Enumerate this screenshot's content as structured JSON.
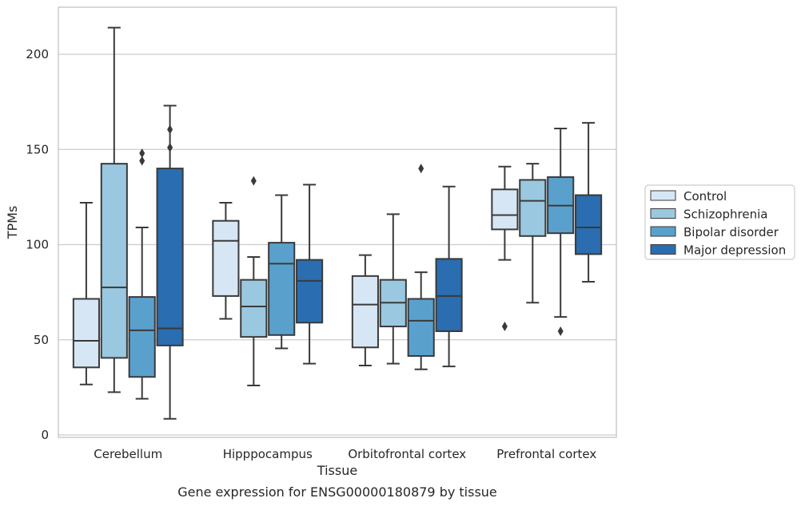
{
  "chart_data": {
    "type": "boxplot",
    "title": "",
    "caption": "Gene expression for ENSG00000180879 by tissue",
    "xlabel": "Tissue",
    "ylabel": "TPMs",
    "ylim": [
      0,
      225
    ],
    "yticks": [
      "0",
      "50",
      "100",
      "150",
      "200"
    ],
    "ytick_values": [
      0,
      50,
      100,
      150,
      200
    ],
    "grid": "horizontal",
    "legend_position": "right",
    "categories": [
      "Cerebellum",
      "Hipppocampus",
      "Orbitofrontal cortex",
      "Prefrontal cortex"
    ],
    "series": [
      {
        "name": "Control",
        "color": "#d6e6f4",
        "boxes": [
          {
            "whislo": 26.5,
            "q1": 35.5,
            "med": 49.5,
            "q3": 71.5,
            "whishi": 122,
            "fliers": []
          },
          {
            "whislo": 61,
            "q1": 73,
            "med": 102,
            "q3": 112.5,
            "whishi": 122,
            "fliers": []
          },
          {
            "whislo": 36.5,
            "q1": 46,
            "med": 68.5,
            "q3": 83.5,
            "whishi": 94.5,
            "fliers": []
          },
          {
            "whislo": 92,
            "q1": 108,
            "med": 115.5,
            "q3": 129,
            "whishi": 141,
            "fliers": [
              57
            ]
          }
        ]
      },
      {
        "name": "Schizophrenia",
        "color": "#9ac8e0",
        "boxes": [
          {
            "whislo": 22.5,
            "q1": 40.5,
            "med": 77.5,
            "q3": 142.5,
            "whishi": 214,
            "fliers": []
          },
          {
            "whislo": 26,
            "q1": 51.5,
            "med": 67.5,
            "q3": 81.5,
            "whishi": 93.5,
            "fliers": [
              133.5
            ]
          },
          {
            "whislo": 37.5,
            "q1": 57,
            "med": 69.5,
            "q3": 81.5,
            "whishi": 116,
            "fliers": []
          },
          {
            "whislo": 69.5,
            "q1": 104.5,
            "med": 123,
            "q3": 134,
            "whishi": 142.5,
            "fliers": []
          }
        ]
      },
      {
        "name": "Bipolar disorder",
        "color": "#5aa0cd",
        "boxes": [
          {
            "whislo": 19,
            "q1": 30.5,
            "med": 55,
            "q3": 72.5,
            "whishi": 109,
            "fliers": [
              144,
              148
            ]
          },
          {
            "whislo": 45.5,
            "q1": 52.5,
            "med": 90,
            "q3": 101,
            "whishi": 126,
            "fliers": []
          },
          {
            "whislo": 34.5,
            "q1": 41.5,
            "med": 60,
            "q3": 71.5,
            "whishi": 85.5,
            "fliers": [
              140
            ]
          },
          {
            "whislo": 62,
            "q1": 106,
            "med": 120.5,
            "q3": 135.5,
            "whishi": 161,
            "fliers": [
              54.5
            ]
          }
        ]
      },
      {
        "name": "Major depression",
        "color": "#2a6db0",
        "boxes": [
          {
            "whislo": 8.5,
            "q1": 47,
            "med": 56,
            "q3": 140,
            "whishi": 173,
            "fliers": [
              151,
              160.5
            ]
          },
          {
            "whislo": 37.5,
            "q1": 59,
            "med": 81,
            "q3": 92,
            "whishi": 131.5,
            "fliers": []
          },
          {
            "whislo": 36,
            "q1": 54.5,
            "med": 73,
            "q3": 92.5,
            "whishi": 130.5,
            "fliers": []
          },
          {
            "whislo": 80.5,
            "q1": 95,
            "med": 109,
            "q3": 126,
            "whishi": 164,
            "fliers": []
          }
        ]
      }
    ]
  }
}
